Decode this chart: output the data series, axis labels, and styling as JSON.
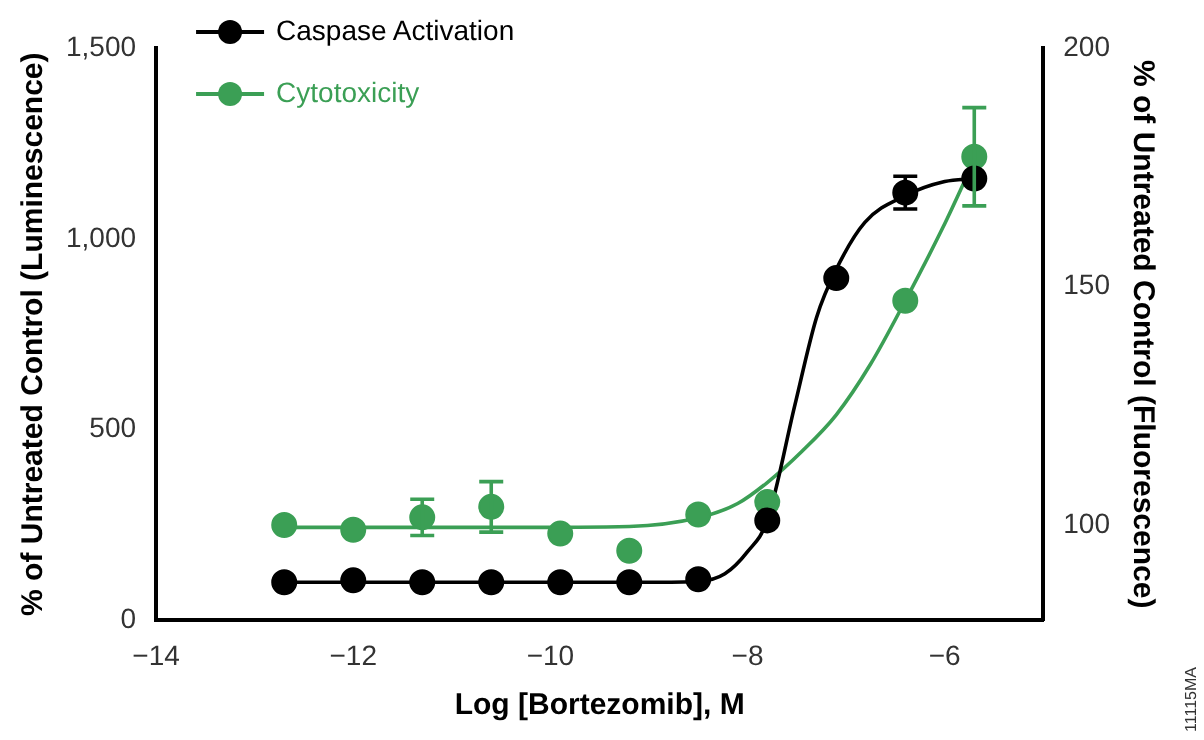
{
  "chart_data": {
    "type": "scatter",
    "xlabel": "Log [Bortezomib], M",
    "ylabel": "% of Untreated Control (Luminescence)",
    "y2label": "% of Untreated Control (Fluorescence)",
    "xlim": [
      -14,
      -5
    ],
    "xticks": [
      {
        "value": -14,
        "label": "−14"
      },
      {
        "value": -12,
        "label": "−12"
      },
      {
        "value": -10,
        "label": "−10"
      },
      {
        "value": -8,
        "label": "−8"
      },
      {
        "value": -6,
        "label": "−6"
      }
    ],
    "ylim": [
      0,
      1500
    ],
    "yticks": [
      0,
      500,
      {
        "value": 1000,
        "label": "1,000"
      },
      {
        "value": 1500,
        "label": "1,500"
      }
    ],
    "y2lim": [
      80,
      200
    ],
    "y2ticks": [
      100,
      150,
      200
    ],
    "grid": false,
    "legend": "top left",
    "marker": "circle",
    "annotations": [
      "11115MA"
    ],
    "series": [
      {
        "name": "Caspase Activation",
        "color": "#000000",
        "x": [
          -12.7,
          -12.0,
          -11.3,
          -10.6,
          -9.9,
          -9.2,
          -8.5,
          -7.8,
          -7.1,
          -6.4,
          -5.7
        ],
        "values": [
          100,
          105,
          100,
          100,
          100,
          100,
          108,
          262,
          897,
          1121,
          1158
        ],
        "errors": [
          null,
          null,
          null,
          null,
          null,
          null,
          null,
          null,
          null,
          43,
          null
        ]
      },
      {
        "name": "Cytotoxicity",
        "color": "#3b9f55",
        "axis": "y2",
        "x": [
          -12.7,
          -12.0,
          -11.3,
          -10.6,
          -9.9,
          -9.2,
          -8.5,
          -7.8,
          -6.4,
          -5.7
        ],
        "values": [
          100,
          99,
          101.6,
          103.8,
          98.2,
          94.6,
          102.2,
          104.8,
          147,
          177.2
        ],
        "errors": [
          null,
          null,
          3.8,
          5.3,
          null,
          null,
          null,
          null,
          null,
          10.3
        ]
      },
      {
        "color": "#000000",
        "type": "line",
        "marker": "none",
        "x": [
          -12.7,
          -9.0,
          -8.5,
          -8.23,
          -8.0,
          -7.8,
          -7.52,
          -7.3,
          -7.1,
          -6.81,
          -6.4,
          -6.0,
          -5.7
        ],
        "values": [
          100,
          100,
          102,
          122,
          180,
          262,
          564,
          794,
          920,
          1043,
          1113,
          1150,
          1158
        ]
      },
      {
        "color": "#3b9f55",
        "type": "line",
        "marker": "none",
        "axis": "y2",
        "x": [
          -12.7,
          -10.5,
          -9.2,
          -8.5,
          -8.1,
          -7.8,
          -7.45,
          -7.1,
          -6.75,
          -6.4,
          -6.02,
          -5.7
        ],
        "values": [
          99.5,
          99.5,
          99.7,
          101.5,
          104.5,
          108.9,
          115.4,
          123.1,
          133.8,
          147,
          162.3,
          176.5
        ]
      }
    ]
  }
}
